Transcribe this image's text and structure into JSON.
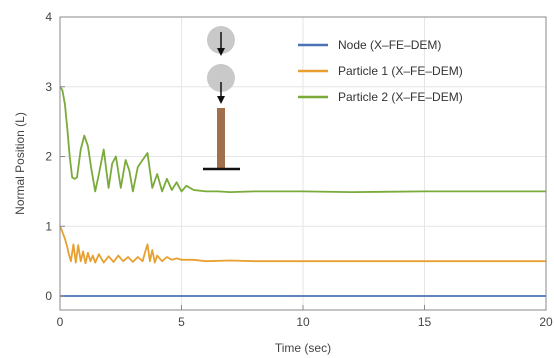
{
  "chart_data": {
    "type": "line",
    "xlabel": "Time (sec)",
    "ylabel": "Normal Position (L)",
    "xlim": [
      0,
      20
    ],
    "ylim": [
      -0.2,
      4
    ],
    "xticks": [
      "0",
      "5",
      "10",
      "15",
      "20"
    ],
    "yticks": [
      "0",
      "1",
      "2",
      "3",
      "4"
    ],
    "grid": true,
    "legend_position": "top-right",
    "series": [
      {
        "name": "Node (X–FE–DEM)",
        "color": "#4a72b5",
        "x": [
          0,
          5,
          10,
          15,
          20
        ],
        "y": [
          0,
          0,
          0,
          0,
          0
        ]
      },
      {
        "name": "Particle 1 (X–FE–DEM)",
        "color": "#e8a030",
        "x": [
          0,
          0.1,
          0.2,
          0.3,
          0.35,
          0.45,
          0.55,
          0.65,
          0.75,
          0.85,
          0.95,
          1.05,
          1.15,
          1.25,
          1.35,
          1.45,
          1.6,
          1.8,
          2.0,
          2.2,
          2.4,
          2.6,
          2.8,
          3.0,
          3.2,
          3.4,
          3.5,
          3.6,
          3.7,
          3.8,
          3.9,
          4.0,
          4.2,
          4.4,
          4.6,
          4.8,
          5.0,
          5.5,
          6.0,
          7.0,
          8.0,
          10.0,
          12.0,
          15.0,
          20.0
        ],
        "y": [
          1.0,
          0.92,
          0.82,
          0.7,
          0.62,
          0.5,
          0.74,
          0.48,
          0.73,
          0.5,
          0.64,
          0.47,
          0.62,
          0.5,
          0.58,
          0.48,
          0.6,
          0.48,
          0.57,
          0.49,
          0.58,
          0.5,
          0.56,
          0.49,
          0.56,
          0.5,
          0.63,
          0.74,
          0.5,
          0.66,
          0.48,
          0.58,
          0.5,
          0.56,
          0.52,
          0.54,
          0.52,
          0.52,
          0.5,
          0.51,
          0.5,
          0.5,
          0.5,
          0.5,
          0.5
        ]
      },
      {
        "name": "Particle 2 (X–FE–DEM)",
        "color": "#7aab3a",
        "x": [
          0,
          0.1,
          0.2,
          0.3,
          0.4,
          0.5,
          0.6,
          0.7,
          0.85,
          1.0,
          1.15,
          1.3,
          1.45,
          1.6,
          1.8,
          2.0,
          2.15,
          2.3,
          2.5,
          2.7,
          2.85,
          3.0,
          3.2,
          3.4,
          3.6,
          3.8,
          4.0,
          4.2,
          4.4,
          4.6,
          4.8,
          5.0,
          5.2,
          5.5,
          6.0,
          6.5,
          7.0,
          8.0,
          10.0,
          12.0,
          15.0,
          20.0
        ],
        "y": [
          3.0,
          2.95,
          2.75,
          2.4,
          2.0,
          1.7,
          1.68,
          1.7,
          2.1,
          2.3,
          2.15,
          1.8,
          1.5,
          1.75,
          2.1,
          1.55,
          1.9,
          2.0,
          1.55,
          1.95,
          1.8,
          1.5,
          1.85,
          1.95,
          2.05,
          1.55,
          1.75,
          1.5,
          1.68,
          1.52,
          1.63,
          1.5,
          1.58,
          1.52,
          1.5,
          1.5,
          1.49,
          1.5,
          1.5,
          1.49,
          1.5,
          1.5
        ]
      }
    ]
  }
}
